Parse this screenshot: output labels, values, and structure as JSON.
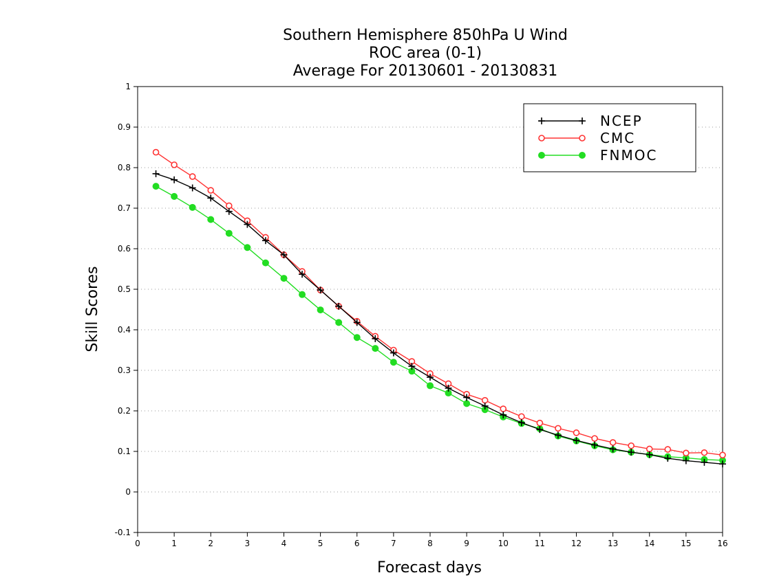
{
  "chart_data": {
    "type": "line",
    "title_lines": [
      "Southern Hemisphere 850hPa U Wind",
      "ROC area (0-1)",
      "Average For 20130601 - 20130831"
    ],
    "xlabel": "Forecast days",
    "ylabel": "Skill Scores",
    "xlim": [
      0,
      16
    ],
    "ylim": [
      -0.1,
      1
    ],
    "x_ticks": [
      "0",
      "1",
      "2",
      "3",
      "4",
      "5",
      "6",
      "7",
      "8",
      "9",
      "10",
      "11",
      "12",
      "13",
      "14",
      "15",
      "16"
    ],
    "y_ticks": [
      "-0.1",
      "0",
      "0.1",
      "0.2",
      "0.3",
      "0.4",
      "0.5",
      "0.6",
      "0.7",
      "0.8",
      "0.9",
      "1"
    ],
    "grid": "horizontal dotted",
    "legend_position": "top-right",
    "x": [
      0.5,
      1,
      1.5,
      2,
      2.5,
      3,
      3.5,
      4,
      4.5,
      5,
      5.5,
      6,
      6.5,
      7,
      7.5,
      8,
      8.5,
      9,
      9.5,
      10,
      10.5,
      11,
      11.5,
      12,
      12.5,
      13,
      13.5,
      14,
      14.5,
      15,
      15.5,
      16
    ],
    "series": [
      {
        "name": "NCEP",
        "color": "#000000",
        "marker": "plus",
        "values": [
          0.785,
          0.77,
          0.75,
          0.725,
          0.692,
          0.66,
          0.62,
          0.585,
          0.537,
          0.498,
          0.458,
          0.418,
          0.378,
          0.343,
          0.31,
          0.283,
          0.256,
          0.233,
          0.212,
          0.19,
          0.171,
          0.154,
          0.14,
          0.127,
          0.116,
          0.106,
          0.098,
          0.092,
          0.083,
          0.077,
          0.073,
          0.069
        ]
      },
      {
        "name": "CMC",
        "color": "#ff3333",
        "marker": "open-circle",
        "values": [
          0.838,
          0.807,
          0.778,
          0.744,
          0.706,
          0.669,
          0.628,
          0.585,
          0.544,
          0.498,
          0.458,
          0.421,
          0.384,
          0.35,
          0.322,
          0.292,
          0.267,
          0.241,
          0.226,
          0.205,
          0.186,
          0.17,
          0.157,
          0.146,
          0.132,
          0.122,
          0.114,
          0.106,
          0.105,
          0.096,
          0.097,
          0.091
        ]
      },
      {
        "name": "FNMOC",
        "color": "#22dd22",
        "marker": "filled-circle",
        "values": [
          0.754,
          0.729,
          0.702,
          0.672,
          0.638,
          0.603,
          0.565,
          0.527,
          0.487,
          0.449,
          0.418,
          0.381,
          0.354,
          0.32,
          0.298,
          0.262,
          0.244,
          0.218,
          0.203,
          0.185,
          0.169,
          0.156,
          0.138,
          0.126,
          0.114,
          0.104,
          0.098,
          0.092,
          0.087,
          0.084,
          0.08,
          0.078
        ]
      }
    ]
  }
}
